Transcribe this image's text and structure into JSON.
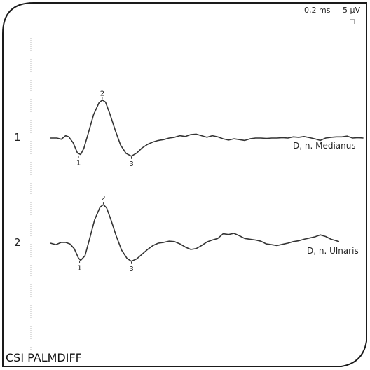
{
  "scale": {
    "time_per_div": "0,2 ms",
    "amplitude_per_div": "5 µV"
  },
  "title": "CSI PALMDIFF",
  "chart_data": {
    "type": "line",
    "title": "CSI PALMDIFF",
    "xlabel": "",
    "ylabel": "",
    "traces": [
      {
        "number": "1",
        "name": "D, n. Medianus",
        "markers": [
          {
            "label": "1",
            "x": 0.52,
            "y": -4.4
          },
          {
            "label": "2",
            "x": 0.96,
            "y": 9.7
          },
          {
            "label": "3",
            "x": 1.5,
            "y": -4.6
          }
        ],
        "points": [
          [
            0.0,
            0.0
          ],
          [
            0.12,
            0.0
          ],
          [
            0.2,
            -0.3
          ],
          [
            0.28,
            0.6
          ],
          [
            0.34,
            0.3
          ],
          [
            0.42,
            -1.2
          ],
          [
            0.5,
            -3.8
          ],
          [
            0.56,
            -4.2
          ],
          [
            0.62,
            -2.6
          ],
          [
            0.7,
            1.2
          ],
          [
            0.8,
            6.0
          ],
          [
            0.9,
            9.0
          ],
          [
            0.96,
            9.7
          ],
          [
            1.02,
            9.2
          ],
          [
            1.1,
            6.2
          ],
          [
            1.2,
            2.0
          ],
          [
            1.3,
            -1.8
          ],
          [
            1.4,
            -3.9
          ],
          [
            1.5,
            -4.6
          ],
          [
            1.6,
            -3.8
          ],
          [
            1.7,
            -2.5
          ],
          [
            1.8,
            -1.6
          ],
          [
            1.9,
            -1.0
          ],
          [
            2.0,
            -0.6
          ],
          [
            2.1,
            -0.4
          ],
          [
            2.2,
            0.0
          ],
          [
            2.3,
            0.2
          ],
          [
            2.4,
            0.6
          ],
          [
            2.5,
            0.4
          ],
          [
            2.6,
            0.9
          ],
          [
            2.7,
            1.0
          ],
          [
            2.8,
            0.6
          ],
          [
            2.9,
            0.2
          ],
          [
            3.0,
            0.6
          ],
          [
            3.1,
            0.3
          ],
          [
            3.2,
            -0.2
          ],
          [
            3.3,
            -0.5
          ],
          [
            3.4,
            -0.2
          ],
          [
            3.5,
            -0.4
          ],
          [
            3.6,
            -0.6
          ],
          [
            3.7,
            -0.2
          ],
          [
            3.8,
            0.0
          ],
          [
            3.9,
            0.0
          ],
          [
            4.0,
            -0.1
          ],
          [
            4.1,
            0.0
          ],
          [
            4.2,
            0.0
          ],
          [
            4.3,
            0.1
          ],
          [
            4.4,
            0.0
          ],
          [
            4.5,
            0.3
          ],
          [
            4.6,
            0.2
          ],
          [
            4.7,
            0.4
          ],
          [
            4.8,
            0.1
          ],
          [
            4.9,
            -0.2
          ],
          [
            5.0,
            -0.6
          ],
          [
            5.1,
            0.0
          ],
          [
            5.2,
            0.2
          ],
          [
            5.3,
            0.3
          ],
          [
            5.4,
            0.3
          ],
          [
            5.5,
            0.5
          ],
          [
            5.6,
            0.0
          ],
          [
            5.7,
            0.1
          ],
          [
            5.8,
            0.0
          ]
        ]
      },
      {
        "number": "2",
        "name": "D, n. Ulnaris",
        "markers": [
          {
            "label": "1",
            "x": 0.54,
            "y": -4.4
          },
          {
            "label": "2",
            "x": 0.98,
            "y": 9.8
          },
          {
            "label": "3",
            "x": 1.5,
            "y": -4.6
          }
        ],
        "points": [
          [
            0.0,
            0.0
          ],
          [
            0.1,
            -0.4
          ],
          [
            0.2,
            0.2
          ],
          [
            0.28,
            0.2
          ],
          [
            0.36,
            -0.2
          ],
          [
            0.44,
            -1.4
          ],
          [
            0.52,
            -3.8
          ],
          [
            0.56,
            -4.4
          ],
          [
            0.64,
            -3.2
          ],
          [
            0.72,
            0.8
          ],
          [
            0.82,
            6.0
          ],
          [
            0.92,
            9.2
          ],
          [
            0.98,
            9.8
          ],
          [
            1.04,
            9.0
          ],
          [
            1.12,
            6.0
          ],
          [
            1.22,
            1.8
          ],
          [
            1.32,
            -1.8
          ],
          [
            1.42,
            -3.9
          ],
          [
            1.5,
            -4.6
          ],
          [
            1.6,
            -4.0
          ],
          [
            1.7,
            -2.8
          ],
          [
            1.8,
            -1.6
          ],
          [
            1.9,
            -0.6
          ],
          [
            2.0,
            0.0
          ],
          [
            2.1,
            0.2
          ],
          [
            2.2,
            0.5
          ],
          [
            2.3,
            0.4
          ],
          [
            2.4,
            -0.2
          ],
          [
            2.5,
            -1.0
          ],
          [
            2.6,
            -1.6
          ],
          [
            2.7,
            -1.4
          ],
          [
            2.8,
            -0.6
          ],
          [
            2.9,
            0.3
          ],
          [
            3.0,
            0.8
          ],
          [
            3.1,
            1.2
          ],
          [
            3.2,
            2.4
          ],
          [
            3.3,
            2.2
          ],
          [
            3.4,
            2.5
          ],
          [
            3.5,
            1.9
          ],
          [
            3.6,
            1.2
          ],
          [
            3.7,
            1.0
          ],
          [
            3.8,
            0.8
          ],
          [
            3.9,
            0.5
          ],
          [
            4.0,
            -0.2
          ],
          [
            4.1,
            -0.4
          ],
          [
            4.2,
            -0.6
          ],
          [
            4.3,
            -0.3
          ],
          [
            4.4,
            0.0
          ],
          [
            4.5,
            0.4
          ],
          [
            4.6,
            0.6
          ],
          [
            4.7,
            1.0
          ],
          [
            4.8,
            1.3
          ],
          [
            4.9,
            1.6
          ],
          [
            5.0,
            2.1
          ],
          [
            5.1,
            1.7
          ],
          [
            5.2,
            1.0
          ],
          [
            5.3,
            0.6
          ],
          [
            5.35,
            0.4
          ]
        ]
      }
    ]
  }
}
